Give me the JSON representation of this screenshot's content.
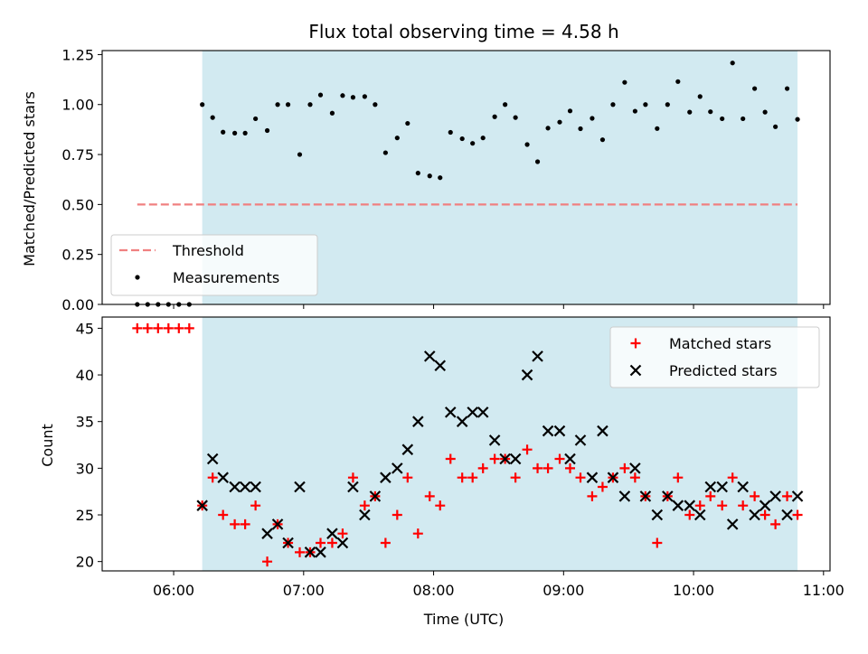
{
  "colors": {
    "observing_span": "#add8e6",
    "threshold": "#f08080",
    "measurements": "#000000",
    "matched": "#ff0000",
    "predicted": "#000000",
    "legend_bg": "#ffffff"
  },
  "chart_data": [
    {
      "type": "scatter",
      "title": "Flux total observing time = 4.58 h",
      "xlabel": "",
      "ylabel": "Matched/Predicted stars",
      "xlim": [
        5.45,
        11.05
      ],
      "ylim": [
        0,
        1.27
      ],
      "x_ticks": [
        6,
        7,
        8,
        9,
        10,
        11
      ],
      "y_ticks": [
        0,
        0.25,
        0.5,
        0.75,
        1.0,
        1.25
      ],
      "y_tick_labels": [
        "0.00",
        "0.25",
        "0.50",
        "0.75",
        "1.00",
        "1.25"
      ],
      "grid": false,
      "shaded_span": [
        6.22,
        10.8
      ],
      "threshold": {
        "name": "Threshold",
        "y": 0.5,
        "x_range": [
          5.72,
          10.8
        ],
        "style": "dashed"
      },
      "legend_position": "lower-left",
      "series": [
        {
          "name": "Measurements",
          "marker": "dot",
          "x": [
            5.72,
            5.8,
            5.88,
            5.96,
            6.04,
            6.12,
            6.22,
            6.3,
            6.38,
            6.47,
            6.55,
            6.63,
            6.72,
            6.8,
            6.88,
            6.97,
            7.05,
            7.13,
            7.22,
            7.3,
            7.38,
            7.47,
            7.55,
            7.63,
            7.72,
            7.8,
            7.88,
            7.97,
            8.05,
            8.13,
            8.22,
            8.3,
            8.38,
            8.47,
            8.55,
            8.63,
            8.72,
            8.8,
            8.88,
            8.97,
            9.05,
            9.13,
            9.22,
            9.3,
            9.38,
            9.47,
            9.55,
            9.63,
            9.72,
            9.8,
            9.88,
            9.97,
            10.05,
            10.13,
            10.22,
            10.3,
            10.38,
            10.47,
            10.55,
            10.63,
            10.72,
            10.8
          ],
          "y": [
            0,
            0,
            0,
            0,
            0,
            0,
            1.0,
            0.935,
            0.862,
            0.857,
            0.857,
            0.929,
            0.87,
            1.0,
            1.0,
            0.75,
            1.0,
            1.048,
            0.957,
            1.045,
            1.036,
            1.04,
            1.0,
            0.759,
            0.833,
            0.906,
            0.657,
            0.643,
            0.634,
            0.861,
            0.829,
            0.806,
            0.833,
            0.939,
            1.0,
            0.935,
            0.8,
            0.714,
            0.882,
            0.912,
            0.968,
            0.879,
            0.931,
            0.824,
            1.0,
            1.111,
            0.967,
            1.0,
            0.88,
            1.0,
            1.115,
            0.962,
            1.04,
            0.964,
            0.929,
            1.208,
            0.929,
            1.08,
            0.962,
            0.889,
            1.08,
            0.926
          ]
        }
      ]
    },
    {
      "type": "scatter",
      "title": "",
      "xlabel": "Time (UTC)",
      "ylabel": "Count",
      "xlim": [
        5.45,
        11.05
      ],
      "ylim": [
        19,
        46.2
      ],
      "x_ticks": [
        6,
        7,
        8,
        9,
        10,
        11
      ],
      "x_tick_labels": [
        "06:00",
        "07:00",
        "08:00",
        "09:00",
        "10:00",
        "11:00"
      ],
      "y_ticks": [
        20,
        25,
        30,
        35,
        40,
        45
      ],
      "grid": false,
      "shaded_span": [
        6.22,
        10.8
      ],
      "legend_position": "upper-right",
      "series": [
        {
          "name": "Matched stars",
          "marker": "plus",
          "x": [
            5.72,
            5.8,
            5.88,
            5.96,
            6.04,
            6.12,
            6.22,
            6.3,
            6.38,
            6.47,
            6.55,
            6.63,
            6.72,
            6.8,
            6.88,
            6.97,
            7.05,
            7.13,
            7.22,
            7.3,
            7.38,
            7.47,
            7.55,
            7.63,
            7.72,
            7.8,
            7.88,
            7.97,
            8.05,
            8.13,
            8.22,
            8.3,
            8.38,
            8.47,
            8.55,
            8.63,
            8.72,
            8.8,
            8.88,
            8.97,
            9.05,
            9.13,
            9.22,
            9.3,
            9.38,
            9.47,
            9.55,
            9.63,
            9.72,
            9.8,
            9.88,
            9.97,
            10.05,
            10.13,
            10.22,
            10.3,
            10.38,
            10.47,
            10.55,
            10.63,
            10.72,
            10.8
          ],
          "y": [
            45,
            45,
            45,
            45,
            45,
            45,
            26,
            29,
            25,
            24,
            24,
            26,
            20,
            24,
            22,
            21,
            21,
            22,
            22,
            23,
            29,
            26,
            27,
            22,
            25,
            29,
            23,
            27,
            26,
            31,
            29,
            29,
            30,
            31,
            31,
            29,
            32,
            30,
            30,
            31,
            30,
            29,
            27,
            28,
            29,
            30,
            29,
            27,
            22,
            27,
            29,
            25,
            26,
            27,
            26,
            29,
            26,
            27,
            25,
            24,
            27,
            25
          ]
        },
        {
          "name": "Predicted stars",
          "marker": "x",
          "x": [
            6.22,
            6.3,
            6.38,
            6.47,
            6.55,
            6.63,
            6.72,
            6.8,
            6.88,
            6.97,
            7.05,
            7.13,
            7.22,
            7.3,
            7.38,
            7.47,
            7.55,
            7.63,
            7.72,
            7.8,
            7.88,
            7.97,
            8.05,
            8.13,
            8.22,
            8.3,
            8.38,
            8.47,
            8.55,
            8.63,
            8.72,
            8.8,
            8.88,
            8.97,
            9.05,
            9.13,
            9.22,
            9.3,
            9.38,
            9.47,
            9.55,
            9.63,
            9.72,
            9.8,
            9.88,
            9.97,
            10.05,
            10.13,
            10.22,
            10.3,
            10.38,
            10.47,
            10.55,
            10.63,
            10.72,
            10.8
          ],
          "y": [
            26,
            31,
            29,
            28,
            28,
            28,
            23,
            24,
            22,
            28,
            21,
            21,
            23,
            22,
            28,
            25,
            27,
            29,
            30,
            32,
            35,
            42,
            41,
            36,
            35,
            36,
            36,
            33,
            31,
            31,
            40,
            42,
            34,
            34,
            31,
            33,
            29,
            34,
            29,
            27,
            30,
            27,
            25,
            27,
            26,
            26,
            25,
            28,
            28,
            24,
            28,
            25,
            26,
            27,
            25,
            27
          ]
        }
      ]
    }
  ]
}
